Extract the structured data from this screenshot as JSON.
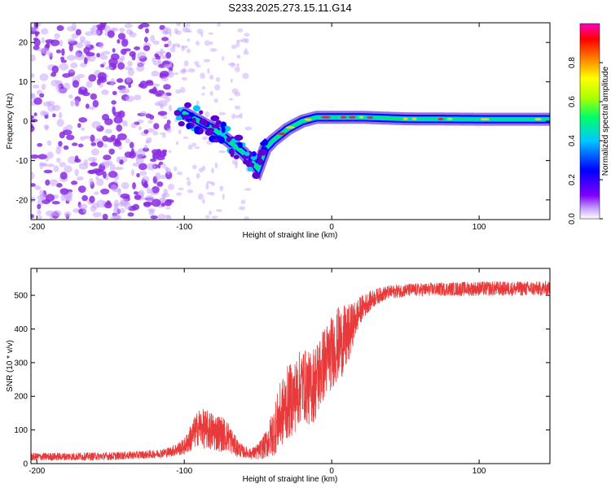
{
  "title": "S233.2025.273.15.11.G14",
  "colors": {
    "snr_line": "#e83a3a",
    "axis": "#000000",
    "background": "#ffffff"
  },
  "chart_data": [
    {
      "type": "heatmap",
      "name": "spectrogram",
      "xlabel": "Height of straight line (km)",
      "ylabel": "Frequency (Hz)",
      "xlim": [
        -204,
        148
      ],
      "ylim": [
        -25,
        25
      ],
      "x_ticks": [
        -200,
        -100,
        0,
        100
      ],
      "y_ticks": [
        -20,
        -10,
        0,
        10,
        20
      ],
      "ridge_x": [
        -100,
        -90,
        -80,
        -70,
        -60,
        -50,
        -45,
        -40,
        -30,
        -20,
        -10,
        0,
        20,
        50,
        100,
        148
      ],
      "ridge_y": [
        2,
        0,
        -2,
        -5,
        -8,
        -12,
        -7,
        -5,
        -2,
        0,
        1,
        1,
        1,
        0.6,
        0.5,
        0.5
      ],
      "colorbar": {
        "label": "Normalized spectral amplitude",
        "ticks": [
          0.0,
          0.2,
          0.4,
          0.6,
          0.8
        ],
        "range": [
          0,
          1
        ],
        "colormap": [
          "#ffffff",
          "#c9a6ff",
          "#8000ff",
          "#0000ff",
          "#00c8ff",
          "#00ff66",
          "#aaff00",
          "#ffff00",
          "#ff8000",
          "#ff0000",
          "#ff00c0"
        ]
      }
    },
    {
      "type": "line",
      "name": "snr",
      "xlabel": "Height of straight line (km)",
      "ylabel": "SNR (10 * v/v)",
      "xlim": [
        -204,
        148
      ],
      "ylim": [
        0,
        580
      ],
      "x_ticks": [
        -200,
        -100,
        0,
        100
      ],
      "y_ticks": [
        0,
        100,
        200,
        300,
        400,
        500
      ],
      "envelope_x": [
        -204,
        -150,
        -120,
        -110,
        -100,
        -95,
        -90,
        -85,
        -80,
        -75,
        -70,
        -65,
        -60,
        -55,
        -50,
        -45,
        -40,
        -35,
        -30,
        -25,
        -20,
        -15,
        -10,
        -5,
        0,
        5,
        10,
        15,
        20,
        25,
        30,
        35,
        40,
        50,
        70,
        100,
        148
      ],
      "envelope_mean": [
        20,
        22,
        28,
        35,
        50,
        80,
        110,
        100,
        95,
        90,
        80,
        50,
        35,
        30,
        35,
        55,
        90,
        140,
        180,
        200,
        240,
        220,
        250,
        300,
        330,
        360,
        370,
        420,
        460,
        480,
        495,
        505,
        510,
        515,
        518,
        520,
        520
      ],
      "envelope_amp": [
        12,
        12,
        12,
        15,
        25,
        45,
        55,
        60,
        60,
        55,
        45,
        30,
        18,
        15,
        25,
        40,
        70,
        100,
        110,
        110,
        110,
        110,
        120,
        110,
        110,
        110,
        100,
        60,
        40,
        30,
        25,
        22,
        20,
        20,
        20,
        22,
        22
      ]
    }
  ]
}
